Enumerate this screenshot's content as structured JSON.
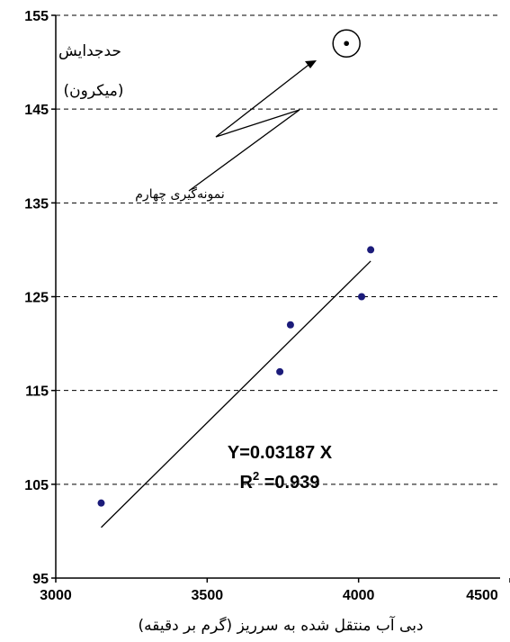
{
  "chart_data": {
    "type": "scatter",
    "xlabel": "دبی آب منتقل شده به سرریز (گرم بر دقیقه)",
    "ylabel_line1": "حدجدایش",
    "ylabel_line2": "(میکرون)",
    "xlim": [
      3000,
      4500
    ],
    "ylim": [
      95,
      155
    ],
    "x_ticks": [
      "3000",
      "3500",
      "4000",
      "4500"
    ],
    "y_ticks": [
      "95",
      "105",
      "115",
      "125",
      "135",
      "145",
      "155"
    ],
    "grid": "horizontal dashed",
    "series": [
      {
        "points": [
          {
            "x": 3150,
            "y": 103
          },
          {
            "x": 3740,
            "y": 117
          },
          {
            "x": 3775,
            "y": 122
          },
          {
            "x": 4010,
            "y": 125
          },
          {
            "x": 4040,
            "y": 130
          }
        ]
      }
    ],
    "outlier": {
      "x": 3960,
      "y": 152
    },
    "outlier_label": "نمونه‌گیری چهارم",
    "trendline": {
      "from": {
        "x": 3150,
        "y": 100.4
      },
      "to": {
        "x": 4040,
        "y": 128.8
      }
    },
    "equation_line1": "Y=0.03187 X",
    "equation_r": "R",
    "equation_sup": "2",
    "equation_rest": " =0.939"
  }
}
